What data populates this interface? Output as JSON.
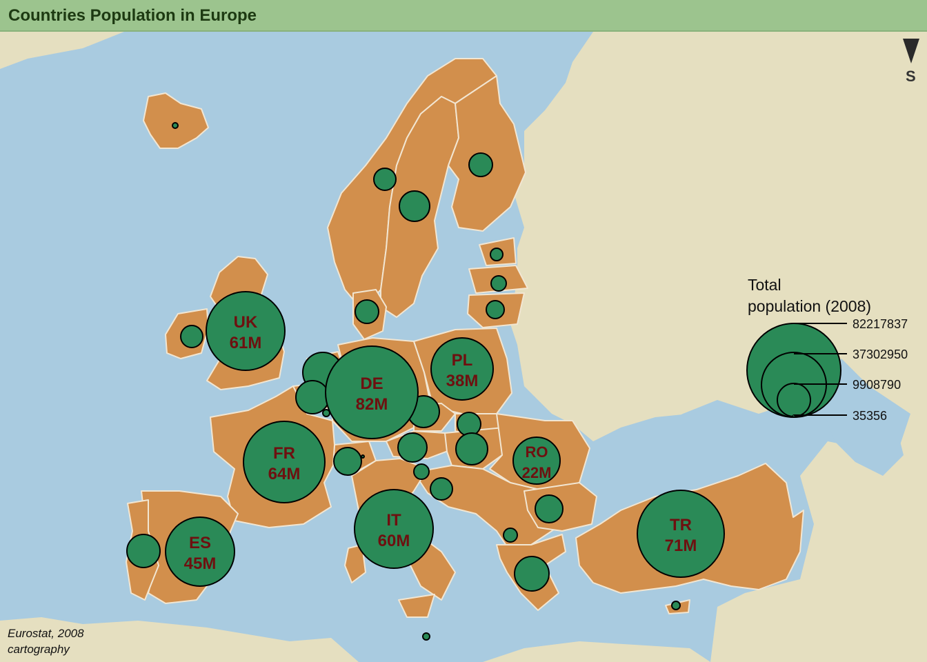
{
  "title": "Countries Population in Europe",
  "compass": {
    "direction": "S",
    "icon": "north-arrow-icon"
  },
  "legend": {
    "title_line1": "Total",
    "title_line2": "population (2008)",
    "values": [
      "82217837",
      "37302950",
      "9908790",
      "35356"
    ]
  },
  "source": {
    "line1": "Eurostat, 2008",
    "line2": "cartography"
  },
  "colors": {
    "sea": "#a9cbe0",
    "land_other": "#e5dfc0",
    "land_countries": "#d28f4c",
    "borders": "#f2e6d2",
    "bubble": "#2a8a57",
    "label": "#6e1010",
    "title_bar": "#9cc48e"
  },
  "map_data": {
    "bubbles": [
      {
        "code": "UK",
        "pop": "61M"
      },
      {
        "code": "DE",
        "pop": "82M"
      },
      {
        "code": "PL",
        "pop": "38M"
      },
      {
        "code": "FR",
        "pop": "64M"
      },
      {
        "code": "RO",
        "pop": "22M"
      },
      {
        "code": "IT",
        "pop": "60M"
      },
      {
        "code": "ES",
        "pop": "45M"
      },
      {
        "code": "TR",
        "pop": "71M"
      }
    ]
  }
}
